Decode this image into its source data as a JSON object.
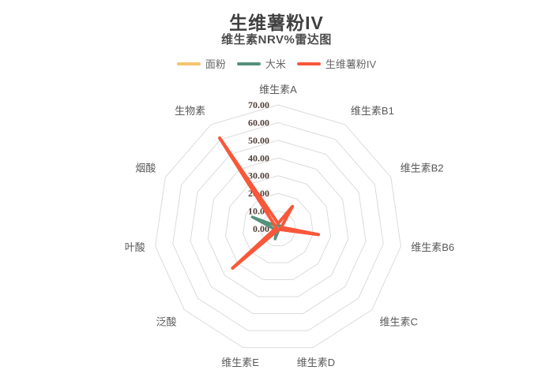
{
  "header": {
    "title": "生维薯粉IV",
    "subtitle": "维生素NRV%雷达图"
  },
  "legend": {
    "items": [
      {
        "label": "面粉",
        "color": "#F6C46E"
      },
      {
        "label": "大米",
        "color": "#55917C"
      },
      {
        "label": "生维薯粉IV",
        "color": "#F9573A"
      }
    ]
  },
  "chart_data": {
    "type": "radar",
    "title": "生维薯粉IV",
    "subtitle": "维生素NRV%雷达图",
    "categories": [
      "维生素A",
      "维生素B1",
      "维生素B2",
      "维生素B6",
      "维生素C",
      "维生素D",
      "维生素E",
      "泛酸",
      "叶酸",
      "烟酸",
      "生物素"
    ],
    "axis_range": [
      0,
      70
    ],
    "tick_interval": 10,
    "tick_labels": [
      "0.00",
      "10.00",
      "20.00",
      "30.00",
      "40.00",
      "50.00",
      "60.00",
      "70.00"
    ],
    "grid": "polygon",
    "grid_rings": 7,
    "legend_position": "top",
    "series": [
      {
        "name": "面粉",
        "color": "#F6C46E",
        "line_width": 3,
        "values": [
          2,
          2,
          1,
          1,
          0.5,
          0.5,
          1,
          2,
          2,
          5,
          1
        ]
      },
      {
        "name": "大米",
        "color": "#55917C",
        "line_width": 3.5,
        "values": [
          2,
          2,
          1,
          2,
          0.5,
          1,
          6,
          1,
          2,
          16,
          2
        ]
      },
      {
        "name": "生维薯粉IV",
        "color": "#F9573A",
        "line_width": 4,
        "values": [
          3,
          15,
          2,
          23,
          0.5,
          0.5,
          1,
          34,
          2,
          1,
          61
        ]
      }
    ]
  },
  "style": {
    "background": "#ffffff",
    "title_color": "#404040",
    "subtitle_color": "#4c4c4c",
    "grid_color": "#dbdbdb",
    "tick_label_color": "#513f38",
    "category_label_color": "#595959",
    "legend_text_color": "#666666"
  }
}
